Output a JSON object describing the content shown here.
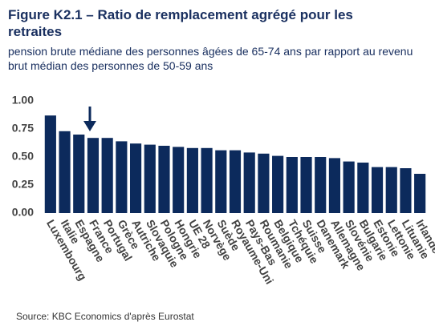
{
  "chart_data": {
    "type": "bar",
    "title": "Figure K2.1 – Ratio de remplacement agrégé pour les retraites",
    "subtitle": "pension brute médiane des personnes âgées de 65-74 ans par rapport au revenu brut médian des personnes de 50-59 ans",
    "source": "Source: KBC Economics d'après Eurostat",
    "categories": [
      "Luxembourg",
      "Italie",
      "Espagne",
      "France",
      "Portugal",
      "Grèce",
      "Autriche",
      "Slovaquie",
      "Pologne",
      "Hongrie",
      "UE 28",
      "Norvège",
      "Suède",
      "Royaume-Uni",
      "Pays-Bas",
      "Roumanie",
      "Belgique",
      "Tchéquie",
      "Suisse",
      "Danemark",
      "Allemagne",
      "Slovénie",
      "Bulgarie",
      "Estonie",
      "Lettonie",
      "Lituanie",
      "Irlande"
    ],
    "values": [
      0.87,
      0.73,
      0.7,
      0.67,
      0.67,
      0.64,
      0.62,
      0.61,
      0.6,
      0.59,
      0.58,
      0.58,
      0.56,
      0.56,
      0.54,
      0.53,
      0.51,
      0.5,
      0.5,
      0.5,
      0.49,
      0.46,
      0.45,
      0.41,
      0.41,
      0.4,
      0.35
    ],
    "color": "#0c2a5c",
    "ylim": [
      0,
      1
    ],
    "yticks": [
      {
        "value": 0,
        "label": "0.00"
      },
      {
        "value": 0.25,
        "label": "0.25"
      },
      {
        "value": 0.5,
        "label": "0.50"
      },
      {
        "value": 0.75,
        "label": "0.75"
      },
      {
        "value": 1,
        "label": "1.00"
      }
    ],
    "grid": false
  }
}
